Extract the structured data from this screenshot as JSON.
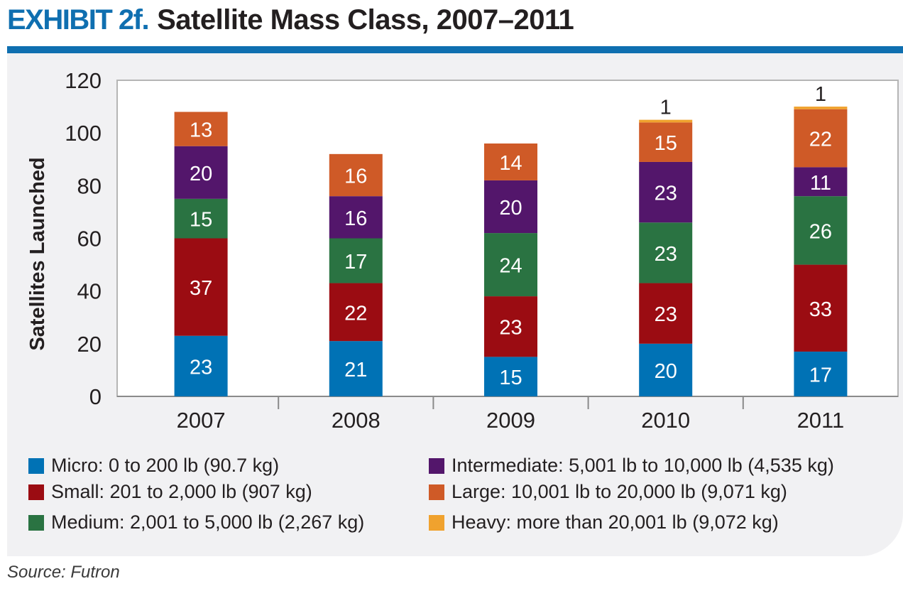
{
  "header": {
    "exhibit": "EXHIBIT 2f.",
    "title": "Satellite Mass Class, 2007–2011"
  },
  "source": "Source: Futron",
  "colors": {
    "accent": "#0f6fb0",
    "panel": "#f1f1f3"
  },
  "chart_data": {
    "type": "stacked-bar",
    "title": "Satellite Mass Class, 2007–2011",
    "xlabel": "",
    "ylabel": "Satellites Launched",
    "ylim": [
      0,
      120
    ],
    "yticks": [
      0,
      20,
      40,
      60,
      80,
      100,
      120
    ],
    "grid": false,
    "legend_placement": "bottom",
    "categories": [
      "2007",
      "2008",
      "2009",
      "2010",
      "2011"
    ],
    "series": [
      {
        "name": "Micro: 0 to 200 lb (90.7 kg)",
        "color": "#0072b5",
        "values": [
          23,
          21,
          15,
          20,
          17
        ]
      },
      {
        "name": "Small: 201 to 2,000 lb (907 kg)",
        "color": "#9b0c12",
        "values": [
          37,
          22,
          23,
          23,
          33
        ]
      },
      {
        "name": "Medium: 2,001 to 5,000 lb (2,267 kg)",
        "color": "#2a7342",
        "values": [
          15,
          17,
          24,
          23,
          26
        ]
      },
      {
        "name": "Intermediate: 5,001 lb to 10,000 lb (4,535 kg)",
        "color": "#53166b",
        "values": [
          20,
          16,
          20,
          23,
          11
        ]
      },
      {
        "name": "Large: 10,001 lb to 20,000 lb (9,071 kg)",
        "color": "#cf5a27",
        "values": [
          13,
          16,
          14,
          15,
          22
        ]
      },
      {
        "name": "Heavy: more than 20,001 lb (9,072 kg)",
        "color": "#f0a22e",
        "values": [
          0,
          0,
          0,
          1,
          1
        ]
      }
    ]
  }
}
